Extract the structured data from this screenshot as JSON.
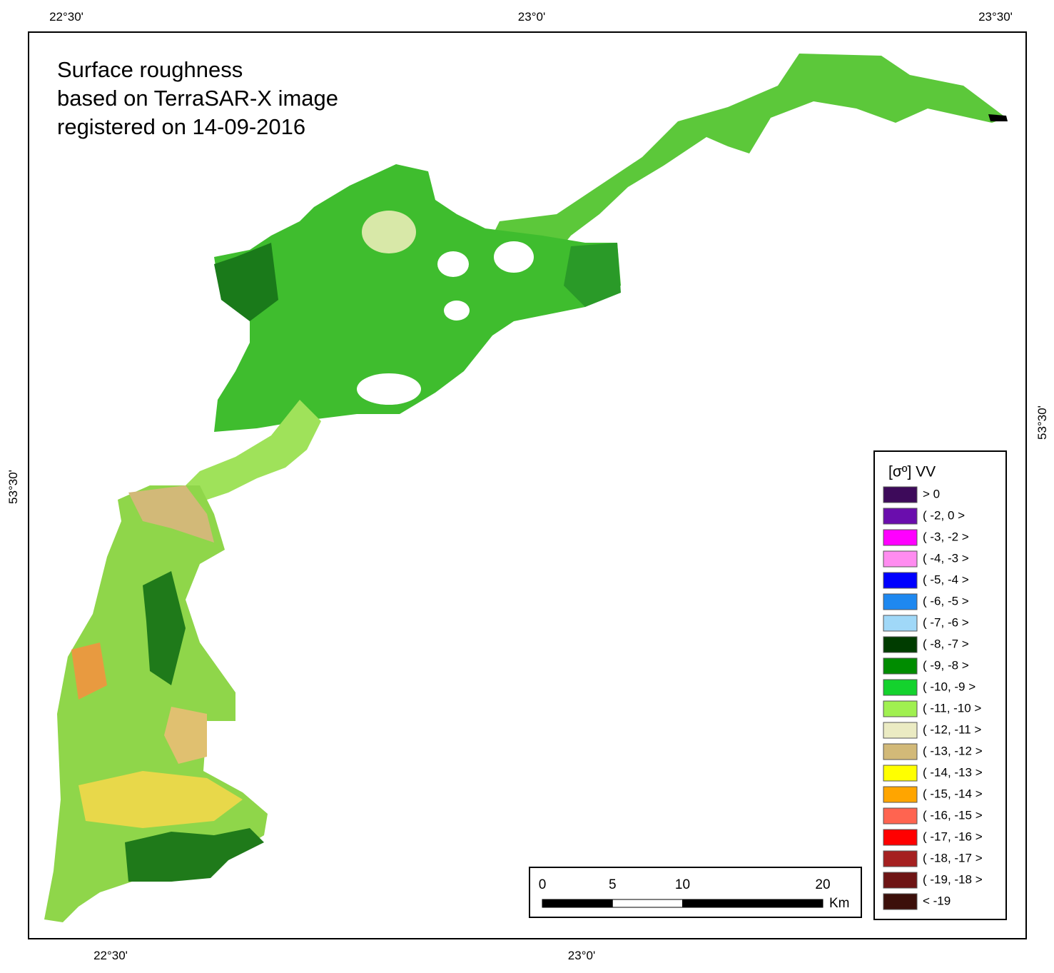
{
  "title": [
    "Surface roughness",
    "based on TerraSAR-X image",
    "registered on 14-09-2016"
  ],
  "coordinates": {
    "top": [
      "22°30'",
      "23°0'",
      "23°30'"
    ],
    "bottom": [
      "22°30'",
      "23°0'"
    ],
    "left": [
      "53°30'"
    ],
    "right": [
      "53°30'"
    ]
  },
  "legend": {
    "title": "[σº] VV",
    "items": [
      {
        "label": "> 0",
        "color": "#3d0a5a"
      },
      {
        "label": "( -2, 0 >",
        "color": "#6a0dad"
      },
      {
        "label": "( -3, -2 >",
        "color": "#ff00ff"
      },
      {
        "label": "( -4, -3 >",
        "color": "#ff8cf0"
      },
      {
        "label": "( -5, -4 >",
        "color": "#0000ff"
      },
      {
        "label": "( -6, -5 >",
        "color": "#1e88f0"
      },
      {
        "label": "( -7, -6 >",
        "color": "#a0d8f8"
      },
      {
        "label": "( -8, -7 >",
        "color": "#003c00"
      },
      {
        "label": "( -9, -8 >",
        "color": "#008c00"
      },
      {
        "label": "( -10, -9 >",
        "color": "#14d22d"
      },
      {
        "label": "( -11, -10 >",
        "color": "#a0f050"
      },
      {
        "label": "( -12, -11 >",
        "color": "#ebebc3"
      },
      {
        "label": "( -13, -12 >",
        "color": "#d2b978"
      },
      {
        "label": "( -14, -13 >",
        "color": "#ffff00"
      },
      {
        "label": "( -15, -14 >",
        "color": "#ffa500"
      },
      {
        "label": "( -16, -15 >",
        "color": "#ff6450"
      },
      {
        "label": "( -17, -16 >",
        "color": "#ff0000"
      },
      {
        "label": "( -18, -17 >",
        "color": "#a52020"
      },
      {
        "label": "( -19, -18 >",
        "color": "#6e1414"
      },
      {
        "label": "< -19",
        "color": "#3c0f0a"
      }
    ]
  },
  "scale_bar": {
    "ticks": [
      0,
      5,
      10,
      20
    ],
    "unit": "Km"
  }
}
